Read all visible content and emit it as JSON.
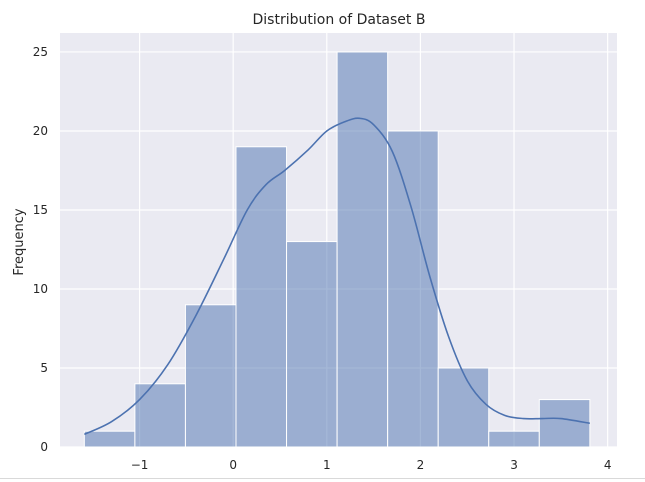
{
  "chart_data": {
    "type": "bar",
    "title": "Distribution of Dataset B",
    "xlabel": "",
    "ylabel": "Frequency",
    "xlim": [
      -1.85,
      4.1
    ],
    "ylim": [
      0,
      26.2
    ],
    "xticks": [
      -1,
      0,
      1,
      2,
      3,
      4
    ],
    "xtick_labels": [
      "−1",
      "0",
      "1",
      "2",
      "3",
      "4"
    ],
    "yticks": [
      0,
      5,
      10,
      15,
      20,
      25
    ],
    "ytick_labels": [
      "0",
      "5",
      "10",
      "15",
      "20",
      "25"
    ],
    "bins": [
      {
        "x0": -1.59,
        "x1": -1.05,
        "count": 1
      },
      {
        "x0": -1.05,
        "x1": -0.51,
        "count": 4
      },
      {
        "x0": -0.51,
        "x1": 0.03,
        "count": 9
      },
      {
        "x0": 0.03,
        "x1": 0.57,
        "count": 19
      },
      {
        "x0": 0.57,
        "x1": 1.11,
        "count": 13
      },
      {
        "x0": 1.11,
        "x1": 1.65,
        "count": 25
      },
      {
        "x0": 1.65,
        "x1": 2.19,
        "count": 20
      },
      {
        "x0": 2.19,
        "x1": 2.73,
        "count": 5
      },
      {
        "x0": 2.73,
        "x1": 3.27,
        "count": 1
      },
      {
        "x0": 3.27,
        "x1": 3.81,
        "count": 3
      }
    ],
    "kde": {
      "x": [
        -1.59,
        -1.3,
        -1.0,
        -0.7,
        -0.4,
        -0.1,
        0.15,
        0.35,
        0.55,
        0.8,
        1.0,
        1.2,
        1.35,
        1.5,
        1.7,
        1.9,
        2.1,
        2.3,
        2.5,
        2.7,
        2.9,
        3.1,
        3.3,
        3.5,
        3.81
      ],
      "y": [
        0.8,
        1.6,
        3.0,
        5.2,
        8.3,
        11.9,
        15.0,
        16.6,
        17.5,
        18.8,
        20.0,
        20.6,
        20.8,
        20.4,
        18.7,
        15.2,
        10.8,
        7.0,
        4.2,
        2.7,
        2.0,
        1.8,
        1.8,
        1.8,
        1.5
      ]
    },
    "grid": true,
    "legend": "none",
    "colors": {
      "background": "#eaeaf2",
      "grid": "#ffffff",
      "bar_fill": "#4c72b0",
      "bar_opacity": "0.5",
      "bar_edge": "#ffffff",
      "kde_line": "#4c72b0",
      "text": "#262626"
    }
  }
}
